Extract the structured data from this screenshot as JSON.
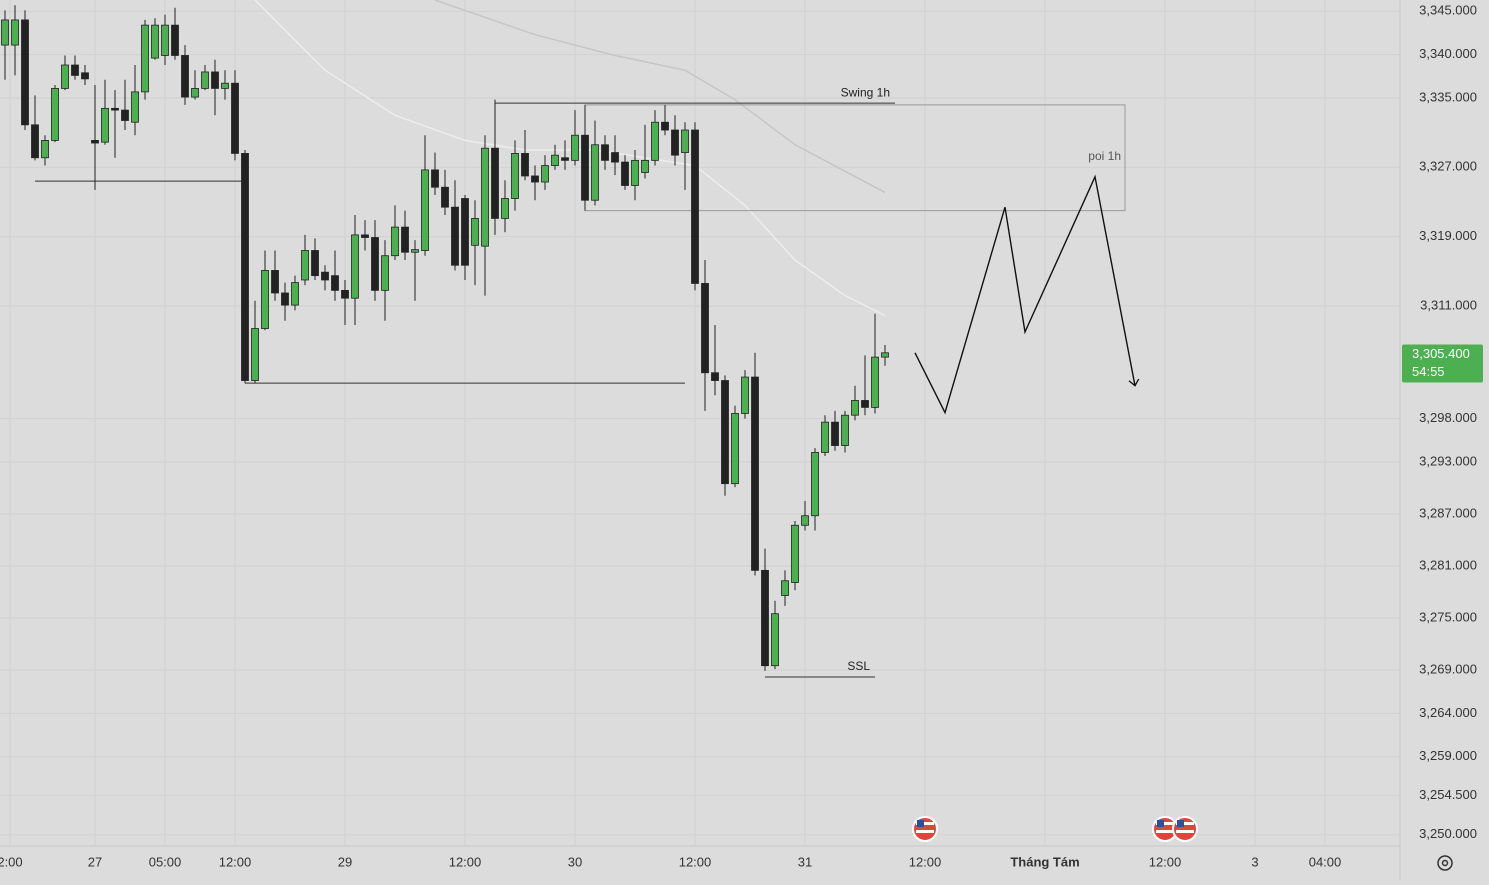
{
  "chart_data": {
    "type": "candlestick",
    "xlim": [
      -0.5,
      139.5
    ],
    "ylim": [
      3248.7,
      3346.3
    ],
    "grid": true,
    "up_color": "#4caf50",
    "down_color": "#222222",
    "yticks": [
      {
        "value": 3345,
        "label": "3,345.000"
      },
      {
        "value": 3340,
        "label": "3,340.000"
      },
      {
        "value": 3335,
        "label": "3,335.000"
      },
      {
        "value": 3327,
        "label": "3,327.000"
      },
      {
        "value": 3319,
        "label": "3,319.000"
      },
      {
        "value": 3311,
        "label": "3,311.000"
      },
      {
        "value": 3298,
        "label": "3,298.000"
      },
      {
        "value": 3293,
        "label": "3,293.000"
      },
      {
        "value": 3287,
        "label": "3,287.000"
      },
      {
        "value": 3281,
        "label": "3,281.000"
      },
      {
        "value": 3275,
        "label": "3,275.000"
      },
      {
        "value": 3269,
        "label": "3,269.000"
      },
      {
        "value": 3264,
        "label": "3,264.000"
      },
      {
        "value": 3259,
        "label": "3,259.000"
      },
      {
        "value": 3254.5,
        "label": "3,254.500"
      },
      {
        "value": 3250,
        "label": "3,250.000"
      }
    ],
    "xticks": [
      {
        "value": 0.5,
        "label": "2:00"
      },
      {
        "value": 9,
        "label": "27"
      },
      {
        "value": 16,
        "label": "05:00"
      },
      {
        "value": 23,
        "label": "12:00"
      },
      {
        "value": 34,
        "label": "29"
      },
      {
        "value": 46,
        "label": "12:00"
      },
      {
        "value": 57,
        "label": "30"
      },
      {
        "value": 69,
        "label": "12:00"
      },
      {
        "value": 80,
        "label": "31"
      },
      {
        "value": 92,
        "label": "12:00"
      },
      {
        "value": 104,
        "label": "Tháng Tám"
      },
      {
        "value": 116,
        "label": "12:00"
      },
      {
        "value": 125,
        "label": "3"
      },
      {
        "value": 132,
        "label": "04:00"
      }
    ],
    "ohlc": [
      [
        3341.1,
        3345.1,
        3337.1,
        3344.0
      ],
      [
        3341.1,
        3345.7,
        3337.6,
        3344.0
      ],
      [
        3344.0,
        3345.1,
        3331.3,
        3331.9
      ],
      [
        3331.9,
        3335.3,
        3327.8,
        3328.1
      ],
      [
        3328.1,
        3330.7,
        3327.2,
        3330.1
      ],
      [
        3330.1,
        3336.5,
        3329.9,
        3336.1
      ],
      [
        3336.1,
        3339.9,
        3335.9,
        3338.8
      ],
      [
        3338.8,
        3339.9,
        3337.1,
        3337.6
      ],
      [
        3337.9,
        3338.8,
        3336.5,
        3337.2
      ],
      [
        3330.1,
        3336.5,
        3324.4,
        3329.8
      ],
      [
        3329.9,
        3337.1,
        3329.6,
        3333.8
      ],
      [
        3333.8,
        3335.9,
        3328.1,
        3333.6
      ],
      [
        3333.6,
        3337.1,
        3331.3,
        3332.4
      ],
      [
        3332.2,
        3338.8,
        3330.7,
        3335.7
      ],
      [
        3335.7,
        3344.0,
        3334.8,
        3343.4
      ],
      [
        3339.6,
        3344.2,
        3339.4,
        3343.4
      ],
      [
        3339.9,
        3344.6,
        3338.8,
        3343.4
      ],
      [
        3343.4,
        3345.4,
        3339.4,
        3339.9
      ],
      [
        3339.9,
        3341.1,
        3334.2,
        3335.1
      ],
      [
        3335.1,
        3338.2,
        3334.8,
        3336.1
      ],
      [
        3336.1,
        3338.8,
        3335.9,
        3338.0
      ],
      [
        3338.0,
        3339.4,
        3333.0,
        3336.1
      ],
      [
        3336.1,
        3338.2,
        3334.8,
        3336.7
      ],
      [
        3336.7,
        3338.2,
        3327.8,
        3328.6
      ],
      [
        3328.6,
        3329.0,
        3302.1,
        3302.4
      ],
      [
        3302.4,
        3311.6,
        3302.1,
        3308.4
      ],
      [
        3308.4,
        3317.4,
        3308.2,
        3315.1
      ],
      [
        3315.1,
        3317.4,
        3311.6,
        3312.5
      ],
      [
        3312.5,
        3313.7,
        3309.3,
        3311.1
      ],
      [
        3311.1,
        3314.5,
        3310.5,
        3313.7
      ],
      [
        3314.0,
        3319.2,
        3313.4,
        3317.4
      ],
      [
        3317.4,
        3318.8,
        3314.0,
        3314.5
      ],
      [
        3314.9,
        3315.7,
        3312.8,
        3314.0
      ],
      [
        3314.5,
        3317.4,
        3311.6,
        3312.8
      ],
      [
        3312.8,
        3314.0,
        3308.8,
        3311.9
      ],
      [
        3311.9,
        3321.5,
        3308.8,
        3319.2
      ],
      [
        3319.2,
        3320.9,
        3317.4,
        3318.9
      ],
      [
        3318.9,
        3320.9,
        3311.6,
        3312.8
      ],
      [
        3312.8,
        3318.6,
        3309.3,
        3316.8
      ],
      [
        3316.8,
        3322.6,
        3316.3,
        3320.1
      ],
      [
        3320.1,
        3322.0,
        3316.3,
        3317.2
      ],
      [
        3317.2,
        3318.6,
        3311.6,
        3317.5
      ],
      [
        3317.4,
        3330.7,
        3316.8,
        3326.7
      ],
      [
        3326.7,
        3328.7,
        3323.8,
        3324.7
      ],
      [
        3324.7,
        3326.7,
        3321.5,
        3322.4
      ],
      [
        3322.4,
        3325.5,
        3315.1,
        3315.7
      ],
      [
        3323.4,
        3323.8,
        3314.0,
        3315.7
      ],
      [
        3318.0,
        3323.2,
        3313.4,
        3321.1
      ],
      [
        3317.9,
        3330.7,
        3312.2,
        3329.2
      ],
      [
        3329.2,
        3334.8,
        3319.2,
        3321.1
      ],
      [
        3321.1,
        3325.5,
        3319.5,
        3323.4
      ],
      [
        3323.4,
        3330.1,
        3322.0,
        3328.6
      ],
      [
        3328.6,
        3331.3,
        3325.5,
        3326.0
      ],
      [
        3326.0,
        3327.2,
        3323.2,
        3325.3
      ],
      [
        3325.3,
        3328.4,
        3324.4,
        3327.2
      ],
      [
        3327.2,
        3329.6,
        3326.7,
        3328.4
      ],
      [
        3328.1,
        3330.1,
        3326.7,
        3327.8
      ],
      [
        3327.8,
        3333.6,
        3327.2,
        3330.7
      ],
      [
        3330.7,
        3334.2,
        3322.0,
        3323.2
      ],
      [
        3323.2,
        3332.4,
        3322.6,
        3329.6
      ],
      [
        3329.6,
        3330.7,
        3326.7,
        3327.8
      ],
      [
        3328.7,
        3330.7,
        3326.1,
        3327.6
      ],
      [
        3327.6,
        3328.4,
        3324.4,
        3324.9
      ],
      [
        3324.9,
        3329.0,
        3323.2,
        3327.8
      ],
      [
        3326.4,
        3331.9,
        3325.7,
        3327.8
      ],
      [
        3327.8,
        3333.6,
        3327.2,
        3332.2
      ],
      [
        3332.2,
        3334.2,
        3330.7,
        3331.3
      ],
      [
        3331.3,
        3333.0,
        3327.2,
        3328.4
      ],
      [
        3328.7,
        3332.2,
        3324.4,
        3331.3
      ],
      [
        3331.3,
        3332.2,
        3312.8,
        3313.6
      ],
      [
        3313.6,
        3316.3,
        3298.9,
        3303.3
      ],
      [
        3303.3,
        3308.8,
        3300.7,
        3302.4
      ],
      [
        3302.4,
        3303.0,
        3289.1,
        3290.5
      ],
      [
        3290.5,
        3299.5,
        3290.1,
        3298.6
      ],
      [
        3298.6,
        3303.6,
        3298.0,
        3302.8
      ],
      [
        3302.8,
        3305.6,
        3279.9,
        3280.5
      ],
      [
        3280.5,
        3283.0,
        3268.9,
        3269.5
      ],
      [
        3269.5,
        3277.0,
        3269.1,
        3275.5
      ],
      [
        3277.6,
        3280.5,
        3276.4,
        3279.3
      ],
      [
        3279.1,
        3286.2,
        3278.2,
        3285.7
      ],
      [
        3285.7,
        3288.5,
        3285.1,
        3286.8
      ],
      [
        3286.8,
        3294.6,
        3285.1,
        3294.1
      ],
      [
        3294.1,
        3298.4,
        3293.7,
        3297.6
      ],
      [
        3297.6,
        3298.9,
        3294.3,
        3294.9
      ],
      [
        3294.9,
        3298.9,
        3294.1,
        3298.4
      ],
      [
        3298.4,
        3301.8,
        3297.8,
        3300.1
      ],
      [
        3300.1,
        3305.3,
        3298.4,
        3299.3
      ],
      [
        3299.3,
        3310.1,
        3298.6,
        3305.1
      ],
      [
        3305.1,
        3306.5,
        3304.1,
        3305.6
      ]
    ],
    "moving_averages": [
      {
        "color": "#c6c6c6",
        "x": [
          43,
          53,
          61,
          68,
          73,
          79,
          88
        ],
        "values": [
          3346.3,
          3342.3,
          3339.9,
          3338.2,
          3334.8,
          3329.6,
          3324.1
        ]
      },
      {
        "color": "#ededed",
        "x": [
          25,
          32,
          39,
          46,
          52,
          59,
          69,
          74,
          79,
          84,
          88
        ],
        "values": [
          3346.3,
          3338.2,
          3333.0,
          3330.1,
          3329.0,
          3329.0,
          3327.2,
          3322.6,
          3316.3,
          3312.2,
          3309.9
        ]
      }
    ],
    "levels": [
      {
        "label": "Swing 1h",
        "x": [
          49,
          89
        ],
        "value": 3334.4
      },
      {
        "label": "SSL",
        "x": [
          76,
          87
        ],
        "value": 3268.2
      },
      {
        "x": [
          3,
          24
        ],
        "value": 3325.4
      },
      {
        "x": [
          24,
          68
        ],
        "value": 3302.1
      }
    ],
    "zone": {
      "label": "poi 1h",
      "x": [
        58,
        112
      ],
      "values": [
        3322.0,
        3334.2
      ]
    },
    "projection": {
      "x": [
        91,
        94,
        100,
        102,
        109,
        113
      ],
      "values": [
        3305.6,
        3298.7,
        3322.4,
        3308.0,
        3325.9,
        3301.8
      ]
    },
    "current_price": {
      "value": 3305.4,
      "label": "3,305.400"
    },
    "countdown": "54:55"
  }
}
